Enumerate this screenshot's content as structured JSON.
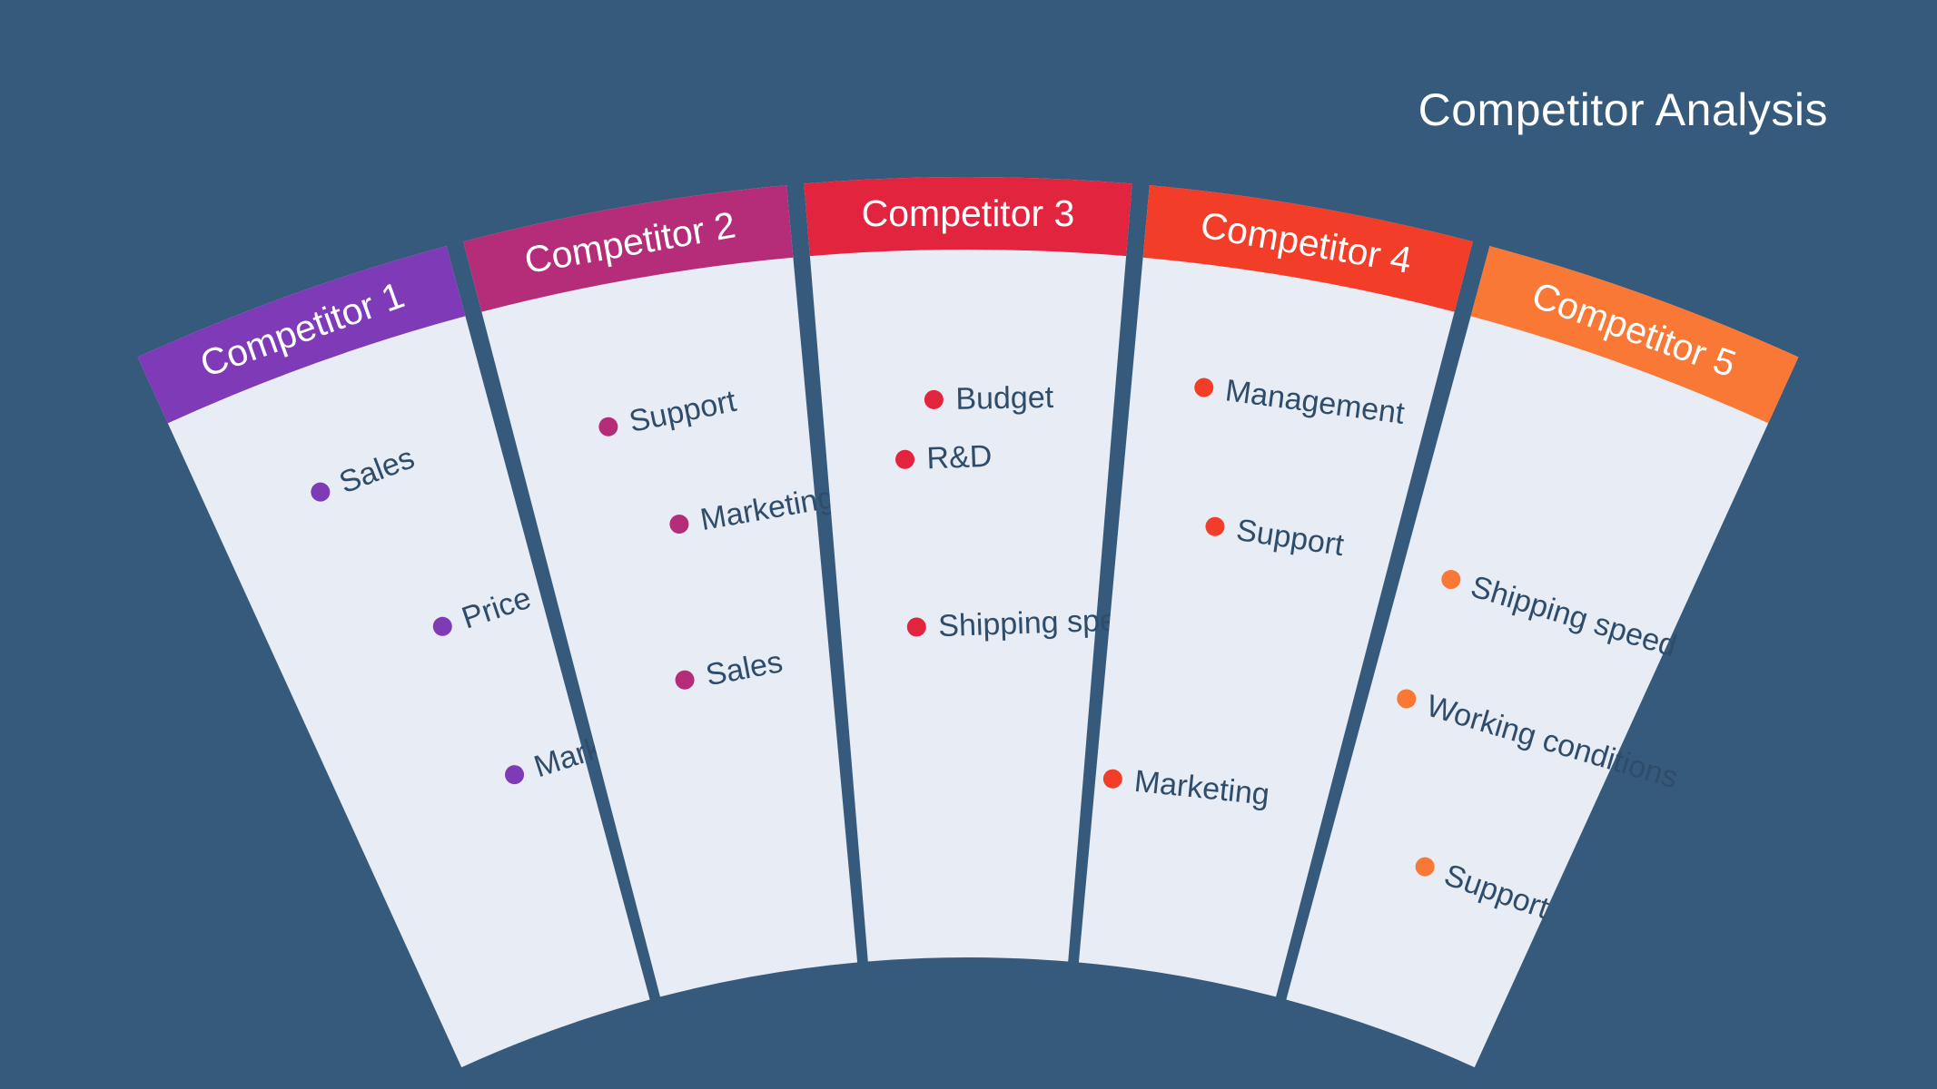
{
  "title": "Competitor Analysis",
  "colors": {
    "background": "#355a7b",
    "card": "#e8ecf4",
    "item_text": "#2f4d6b"
  },
  "competitors": [
    {
      "name": "Competitor 1",
      "color": "#7e3ab7",
      "items": [
        "Sales",
        "Price",
        "Marketing"
      ]
    },
    {
      "name": "Competitor 2",
      "color": "#b52d78",
      "items": [
        "Support",
        "Marketing",
        "Sales"
      ]
    },
    {
      "name": "Competitor 3",
      "color": "#e2243f",
      "items": [
        "Budget",
        "R&D",
        "Shipping speed"
      ]
    },
    {
      "name": "Competitor 4",
      "color": "#f23d28",
      "items": [
        "Management",
        "Support",
        "Marketing"
      ]
    },
    {
      "name": "Competitor 5",
      "color": "#f97835",
      "items": [
        "Shipping speed",
        "Working conditions",
        "Support"
      ]
    }
  ]
}
